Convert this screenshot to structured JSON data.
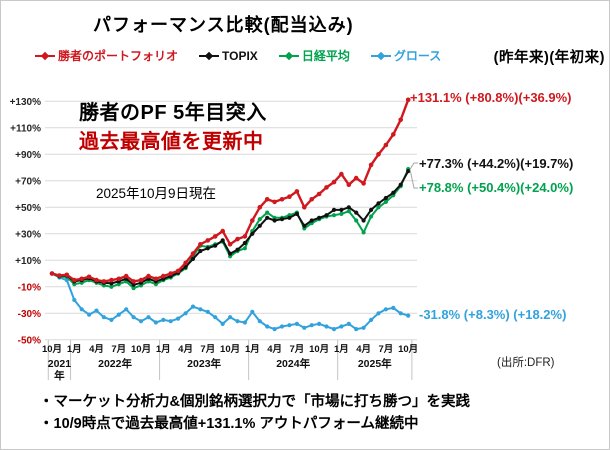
{
  "title": "パフォーマンス比較(配当込み)",
  "header_right": "(昨年来)(年初来)",
  "annotations": {
    "line1": "勝者のPF 5年目突入",
    "line2": "過去最高値を更新中",
    "as_of": "2025年10月9日現在",
    "source": "(出所:DFR)"
  },
  "footer": {
    "bullet1": "・マーケット分析力&個別銘柄選択力で「市場に打ち勝つ」を実践",
    "bullet2": "・10/9時点で過去最高値+131.1% アウトパフォーム継続中"
  },
  "colors": {
    "red": "#d0181f",
    "black": "#111111",
    "green": "#00a24d",
    "blue": "#31a2dc",
    "negative_tick": "#c00000",
    "grid": "#d9d9d9",
    "separator": "#c4c4c4",
    "leader": "#a6a6a6"
  },
  "chart_data": {
    "type": "line",
    "title": "パフォーマンス比較(配当込み)",
    "ylim": [
      -50,
      130
    ],
    "ytick_step": 20,
    "grid": true,
    "legend_position": "top",
    "x_start": "2021-10",
    "x_end": "2025-10",
    "x_month_labels": [
      "10月",
      "1月",
      "4月",
      "7月",
      "10月",
      "1月",
      "4月",
      "7月",
      "10月",
      "1月",
      "4月",
      "7月",
      "10月",
      "1月",
      "4月",
      "7月",
      "10月"
    ],
    "years": [
      {
        "label": "2021年",
        "first_line": "2021",
        "second_line": "年",
        "center_month": 1,
        "two_line": true
      },
      {
        "label": "2022年",
        "center_month": 8.5,
        "two_line": false
      },
      {
        "label": "2023年",
        "center_month": 20.5,
        "two_line": false
      },
      {
        "label": "2024年",
        "center_month": 32.5,
        "two_line": false
      },
      {
        "label": "2025年",
        "center_month": 43.5,
        "two_line": false
      }
    ],
    "series": [
      {
        "id": "winner",
        "name": "勝者のポートフォリオ",
        "color": "#d0181f",
        "end_value": 131.1,
        "end_label": "+131.1% (+80.8%)(+36.9%)",
        "values": [
          0,
          -1.5,
          -1,
          -5,
          -4,
          -2.5,
          -5,
          -6,
          -5,
          -4,
          -2,
          -6,
          -5,
          -2,
          -4,
          -2,
          0,
          2,
          8,
          15,
          22,
          25,
          28,
          32,
          22,
          26,
          28,
          40,
          50,
          56,
          54,
          56,
          58,
          62,
          50,
          56,
          60,
          65,
          69,
          75,
          67,
          72,
          68,
          82,
          90,
          97,
          105,
          116,
          131.1
        ]
      },
      {
        "id": "topix",
        "name": "TOPIX",
        "color": "#111111",
        "end_value": 77.3,
        "end_label": "+77.3% (+44.2%)(+19.7%)",
        "values": [
          0,
          -2,
          -1.5,
          -6,
          -5,
          -3.5,
          -6,
          -7,
          -7.5,
          -6,
          -4,
          -8.5,
          -7,
          -4,
          -6,
          -4,
          -2,
          0.5,
          5,
          11,
          17,
          19,
          21,
          25,
          15,
          18,
          23,
          30,
          36,
          42,
          40,
          41,
          42,
          45,
          36,
          40,
          42,
          44,
          48,
          48,
          50,
          46,
          40,
          48,
          53,
          57,
          61,
          67,
          77.3
        ]
      },
      {
        "id": "nikkei",
        "name": "日経平均",
        "color": "#00a24d",
        "end_value": 78.8,
        "end_label": "+78.8% (+50.4%)(+24.0%)",
        "values": [
          0,
          -2.5,
          -2.5,
          -8,
          -7,
          -5,
          -7,
          -9,
          -10,
          -8,
          -6,
          -11,
          -9,
          -6,
          -8,
          -5,
          -3,
          0,
          4,
          13,
          21,
          20,
          22,
          24,
          13,
          17,
          19,
          32,
          41,
          46,
          42,
          42,
          44,
          46,
          34,
          38,
          41,
          43,
          44,
          45,
          47,
          40,
          31,
          43,
          50,
          54,
          59,
          66,
          78.8
        ]
      },
      {
        "id": "growth",
        "name": "グロース",
        "color": "#31a2dc",
        "end_value": -31.8,
        "end_label": "-31.8% (+8.3%) (+18.2%)",
        "values": [
          0,
          -3,
          -5,
          -20,
          -27,
          -31,
          -28,
          -33,
          -35,
          -31,
          -27,
          -33,
          -36,
          -33,
          -37,
          -35,
          -36,
          -34,
          -30,
          -25,
          -27,
          -29,
          -33,
          -38,
          -33,
          -36,
          -37,
          -29,
          -36,
          -40,
          -42,
          -40,
          -39,
          -38,
          -41,
          -39,
          -38,
          -40,
          -42,
          -40,
          -38,
          -42,
          -41,
          -35,
          -30,
          -27,
          -26,
          -30,
          -31.8
        ]
      }
    ]
  }
}
